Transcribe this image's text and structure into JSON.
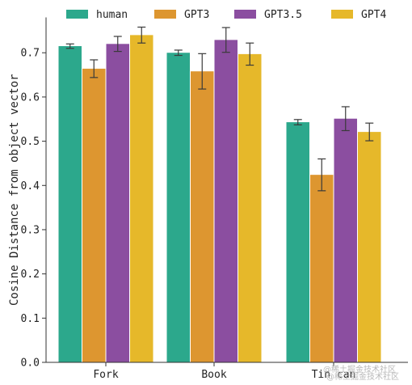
{
  "chart_data": {
    "type": "bar",
    "title": "",
    "xlabel": "",
    "ylabel": "Cosine Distance from object vector",
    "ylim": [
      0,
      0.78
    ],
    "yticks": [
      0.0,
      0.1,
      0.2,
      0.3,
      0.4,
      0.5,
      0.6,
      0.7
    ],
    "ytick_labels": [
      "0.0",
      "0.1",
      "0.2",
      "0.3",
      "0.4",
      "0.5",
      "0.6",
      "0.7"
    ],
    "categories": [
      "Fork",
      "Book",
      "Tin can"
    ],
    "legend_position": "top",
    "grid": false,
    "series": [
      {
        "name": "human",
        "color": "#2ca88c",
        "values": [
          0.715,
          0.7,
          0.543
        ],
        "err": [
          0.005,
          0.006,
          0.006
        ]
      },
      {
        "name": "GPT3",
        "color": "#dd9630",
        "values": [
          0.664,
          0.658,
          0.424
        ],
        "err": [
          0.02,
          0.04,
          0.036
        ]
      },
      {
        "name": "GPT3.5",
        "color": "#8b4ea0",
        "values": [
          0.72,
          0.729,
          0.551
        ],
        "err": [
          0.017,
          0.028,
          0.027
        ]
      },
      {
        "name": "GPT4",
        "color": "#e6b82a",
        "values": [
          0.74,
          0.697,
          0.521
        ],
        "err": [
          0.018,
          0.025,
          0.02
        ]
      }
    ]
  },
  "watermark": {
    "line1": "@稀土掘金技术社区",
    "line2": "@稀土掘金技术社区"
  }
}
